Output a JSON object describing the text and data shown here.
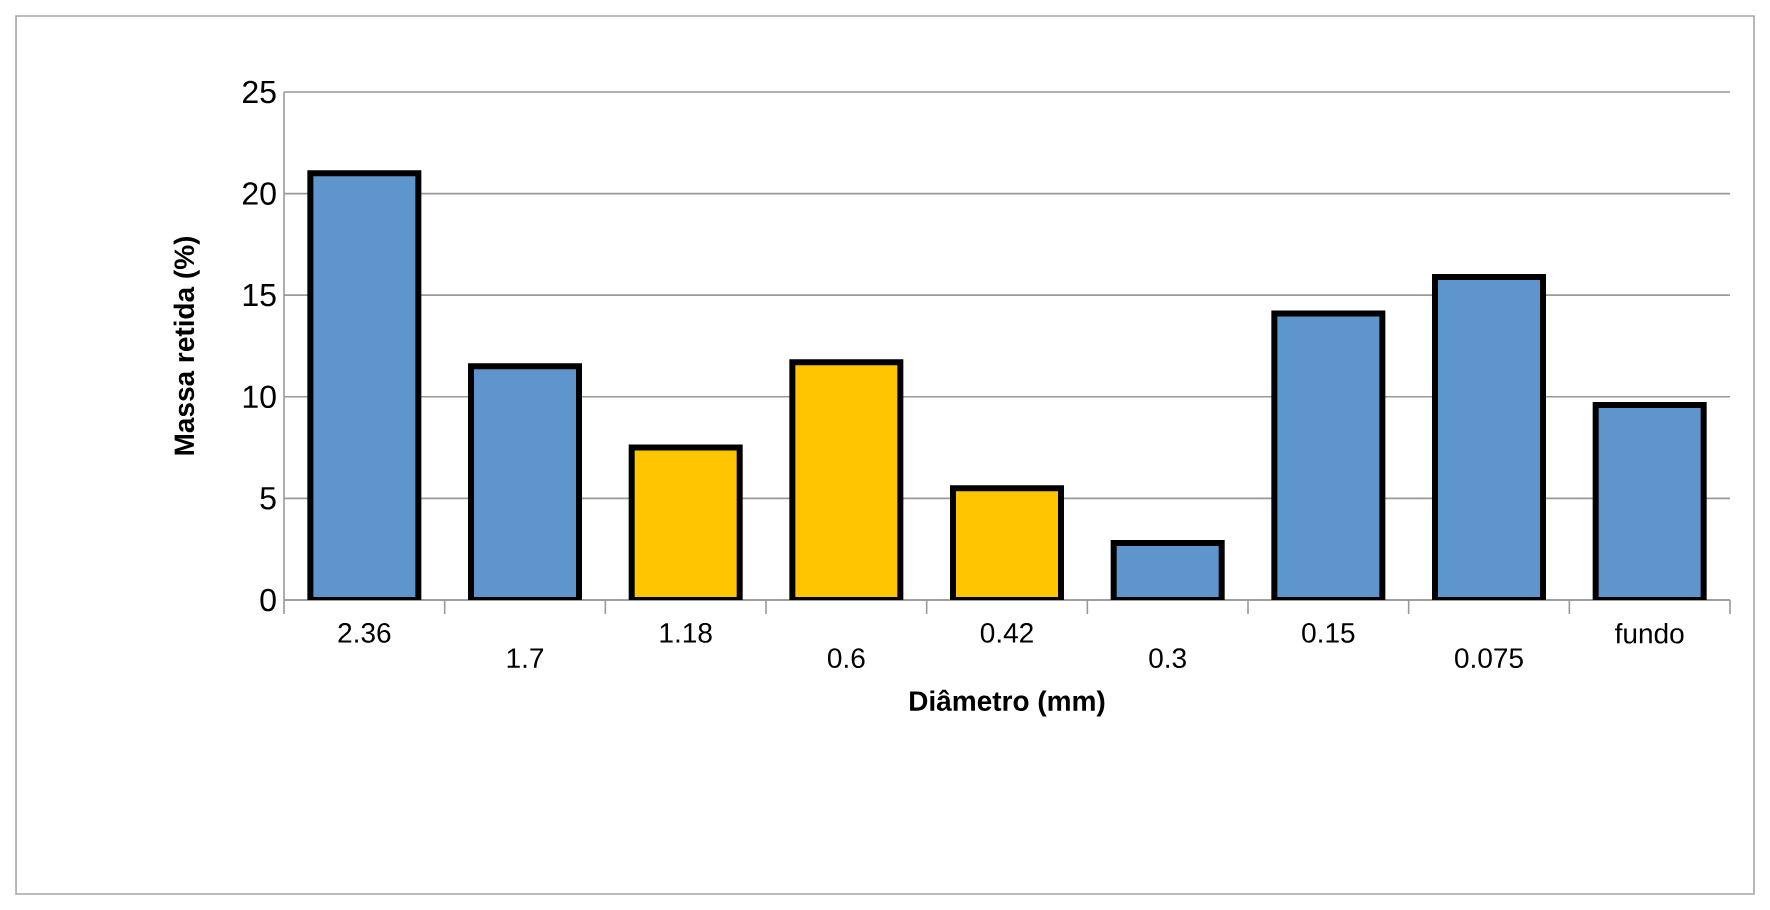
{
  "chart_data": {
    "type": "bar",
    "xlabel": "Diâmetro (mm)",
    "ylabel": "Massa retida (%)",
    "categories": [
      "2.36",
      "1.7",
      "1.18",
      "0.6",
      "0.42",
      "0.3",
      "0.15",
      "0.075",
      "fundo"
    ],
    "values": [
      21,
      11.5,
      7.5,
      11.7,
      5.5,
      2.8,
      14.1,
      15.9,
      9.6
    ],
    "colors": [
      "#5f95cd",
      "#5f95cd",
      "#ffc600",
      "#ffc600",
      "#ffc600",
      "#5f95cd",
      "#5f95cd",
      "#5f95cd",
      "#5f95cd"
    ],
    "ylim": [
      0,
      25
    ],
    "yticks": [
      0,
      5,
      10,
      15,
      20,
      25
    ],
    "grid": "y"
  }
}
